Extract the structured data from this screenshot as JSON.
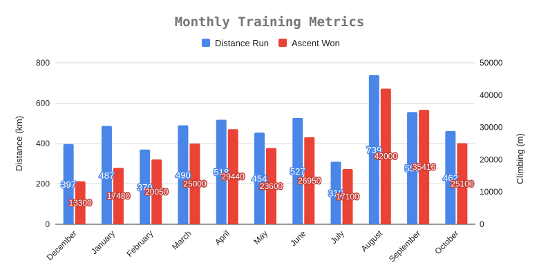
{
  "chart_data": {
    "type": "bar",
    "title": "Monthly Training Metrics",
    "categories": [
      "December",
      "January",
      "February",
      "March",
      "April",
      "May",
      "June",
      "July",
      "August",
      "September",
      "October"
    ],
    "series": [
      {
        "name": "Distance Run",
        "axis": "left",
        "color": "#4a86e8",
        "values": [
          397,
          487,
          370,
          490,
          518,
          454,
          527,
          310,
          739,
          556,
          462
        ]
      },
      {
        "name": "Ascent Won",
        "axis": "right",
        "color": "#ea4335",
        "values": [
          13300,
          17480,
          20050,
          25000,
          29440,
          23600,
          26950,
          17100,
          42000,
          35416,
          25100
        ]
      }
    ],
    "data_labels": {
      "series_0": [
        "397",
        "487",
        "370",
        "490",
        "518",
        "454",
        "527",
        "310",
        "739",
        "556",
        "462"
      ],
      "series_1": [
        "13300",
        "17480",
        "20050",
        "25000",
        "29440",
        "23600",
        "26950",
        "17100",
        "42000",
        "35416",
        "25100"
      ]
    },
    "ylabel": "Distance (km)",
    "y2label": "Climbing (m)",
    "ylim": [
      0,
      800
    ],
    "y2lim": [
      0,
      50000
    ],
    "yticks": [
      "0",
      "200",
      "400",
      "600",
      "800"
    ],
    "y2ticks": [
      "0",
      "10000",
      "20000",
      "30000",
      "40000",
      "50000"
    ],
    "legend_position": "top",
    "grid": true
  }
}
